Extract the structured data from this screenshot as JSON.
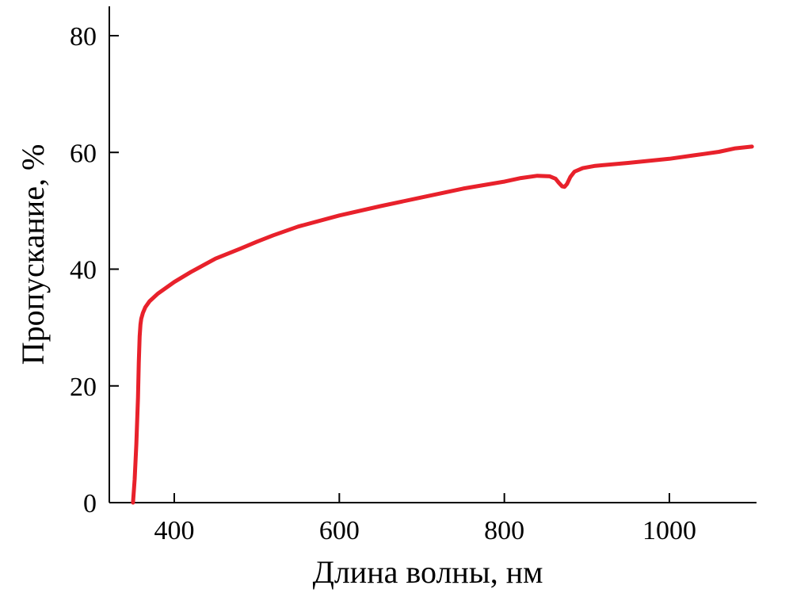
{
  "chart_data": {
    "type": "line",
    "title": "",
    "xlabel": "Длина волны, нм",
    "ylabel": "Пропускание, %",
    "xlim": [
      300,
      1110
    ],
    "ylim": [
      0,
      85
    ],
    "x_ticks": [
      400,
      600,
      800,
      1000
    ],
    "y_ticks": [
      0,
      20,
      40,
      60,
      80
    ],
    "grid": false,
    "legend": "none",
    "line_color": "#e8212b",
    "series": [
      {
        "x": [
          350,
          352,
          354,
          356,
          357,
          358,
          359,
          360,
          362,
          365,
          370,
          380,
          390,
          400,
          420,
          450,
          480,
          500,
          520,
          550,
          600,
          650,
          700,
          750,
          800,
          820,
          840,
          855,
          862,
          866,
          870,
          873,
          876,
          880,
          885,
          895,
          910,
          950,
          1000,
          1030,
          1060,
          1080,
          1100
        ],
        "y": [
          0,
          4,
          10,
          18,
          24,
          28.5,
          30.5,
          31.5,
          32.5,
          33.5,
          34.5,
          35.8,
          36.8,
          37.8,
          39.5,
          41.8,
          43.5,
          44.7,
          45.8,
          47.3,
          49.2,
          50.8,
          52.3,
          53.8,
          55.0,
          55.6,
          56.0,
          55.9,
          55.5,
          54.8,
          54.2,
          54.1,
          54.6,
          55.8,
          56.7,
          57.3,
          57.7,
          58.2,
          58.9,
          59.5,
          60.1,
          60.7,
          61.0
        ]
      }
    ]
  }
}
